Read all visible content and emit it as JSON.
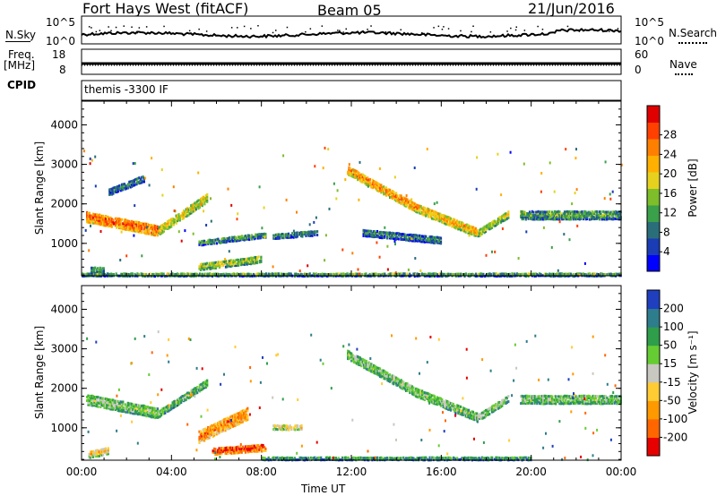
{
  "header": {
    "station": "Fort Hays West (fitACF)",
    "beam": "Beam 05",
    "date": "21/Jun/2016"
  },
  "noise_panel": {
    "left_label": "N.Sky",
    "right_label": "N.Search",
    "left_ticks": [
      "10^5",
      "10^0"
    ],
    "right_ticks": [
      "10^5",
      "10^0"
    ]
  },
  "freq_panel": {
    "left_label_1": "Freq.",
    "left_label_2": "[MHz]",
    "right_label": "Nave",
    "left_ticks": [
      "18",
      "8"
    ],
    "right_ticks": [
      "60",
      "0"
    ]
  },
  "cpid_panel": {
    "label": "CPID",
    "program": "themis -3300 IF"
  },
  "chart_data": [
    {
      "type": "heatmap",
      "name": "power",
      "ylabel": "Slant Range [km]",
      "yticks": [
        1000,
        2000,
        3000,
        4000
      ],
      "ylim": [
        180,
        4600
      ],
      "xlim": [
        0,
        24
      ],
      "colorbar": {
        "label": "Power [dB]",
        "ticks": [
          "4",
          "8",
          "12",
          "16",
          "20",
          "24",
          "28"
        ],
        "colors": [
          "#0000ff",
          "#1a3cb4",
          "#2a6e7a",
          "#3aa04a",
          "#7dbe2a",
          "#e6d21e",
          "#ffb000",
          "#ff8000",
          "#ff4000",
          "#e00000"
        ]
      },
      "echo_regions": [
        {
          "t0": 0.2,
          "t1": 3.4,
          "r_start": 1700,
          "r_end": 1350,
          "thick": 260,
          "level": 0.85
        },
        {
          "t0": 3.4,
          "t1": 5.6,
          "r_start": 1350,
          "r_end": 2200,
          "thick": 220,
          "level": 0.6
        },
        {
          "t0": 1.2,
          "t1": 2.8,
          "r_start": 2350,
          "r_end": 2700,
          "thick": 200,
          "level": 0.3
        },
        {
          "t0": 5.2,
          "t1": 8.2,
          "r_start": 1050,
          "r_end": 1250,
          "thick": 140,
          "level": 0.35
        },
        {
          "t0": 8.5,
          "t1": 10.5,
          "r_start": 1200,
          "r_end": 1300,
          "thick": 120,
          "level": 0.3
        },
        {
          "t0": 5.2,
          "t1": 8.0,
          "r_start": 450,
          "r_end": 650,
          "thick": 200,
          "level": 0.5
        },
        {
          "t0": 0.4,
          "t1": 1.0,
          "r_start": 350,
          "r_end": 350,
          "thick": 180,
          "level": 0.3
        },
        {
          "t0": 11.8,
          "t1": 15.0,
          "r_start": 2900,
          "r_end": 1900,
          "thick": 240,
          "level": 0.75
        },
        {
          "t0": 15.0,
          "t1": 17.6,
          "r_start": 1900,
          "r_end": 1300,
          "thick": 220,
          "level": 0.7
        },
        {
          "t0": 17.6,
          "t1": 19.0,
          "r_start": 1300,
          "r_end": 1800,
          "thick": 200,
          "level": 0.55
        },
        {
          "t0": 12.5,
          "t1": 16.0,
          "r_start": 1300,
          "r_end": 1100,
          "thick": 160,
          "level": 0.3
        },
        {
          "t0": 19.5,
          "t1": 24.0,
          "r_start": 1750,
          "r_end": 1750,
          "thick": 220,
          "level": 0.4
        },
        {
          "t0": 0.0,
          "t1": 24.0,
          "r_start": 240,
          "r_end": 240,
          "thick": 80,
          "level": 0.35
        }
      ]
    },
    {
      "type": "heatmap",
      "name": "velocity",
      "ylabel": "Slant Range [km]",
      "yticks": [
        1000,
        2000,
        3000,
        4000
      ],
      "ylim": [
        180,
        4600
      ],
      "xlim": [
        0,
        24
      ],
      "xticks": [
        "00:00",
        "04:00",
        "08:00",
        "12:00",
        "16:00",
        "20:00",
        "00:00"
      ],
      "xlabel": "Time UT",
      "colorbar": {
        "label": "Velocity [m s⁻¹]",
        "ticks": [
          "200",
          "100",
          "50",
          "15",
          "-15",
          "-50",
          "-100",
          "-200"
        ],
        "colors": [
          "#1f3fbf",
          "#2e7d8c",
          "#2e9e4a",
          "#66cc33",
          "#c8c8c0",
          "#ffcc33",
          "#ff9900",
          "#ff6600",
          "#e60000"
        ]
      },
      "echo_regions": [
        {
          "t0": 0.2,
          "t1": 3.4,
          "r_start": 1750,
          "r_end": 1400,
          "thick": 260,
          "level": 0.45
        },
        {
          "t0": 3.4,
          "t1": 5.6,
          "r_start": 1400,
          "r_end": 2200,
          "thick": 200,
          "level": 0.4
        },
        {
          "t0": 5.2,
          "t1": 7.4,
          "r_start": 800,
          "r_end": 1400,
          "thick": 300,
          "level": 0.85
        },
        {
          "t0": 5.8,
          "t1": 8.2,
          "r_start": 450,
          "r_end": 550,
          "thick": 200,
          "level": 0.95
        },
        {
          "t0": 8.5,
          "t1": 9.8,
          "r_start": 1050,
          "r_end": 1050,
          "thick": 140,
          "level": 0.6
        },
        {
          "t0": 0.3,
          "t1": 1.2,
          "r_start": 350,
          "r_end": 450,
          "thick": 160,
          "level": 0.65
        },
        {
          "t0": 11.8,
          "t1": 15.0,
          "r_start": 2900,
          "r_end": 1900,
          "thick": 240,
          "level": 0.45
        },
        {
          "t0": 15.0,
          "t1": 17.6,
          "r_start": 1900,
          "r_end": 1300,
          "thick": 220,
          "level": 0.45
        },
        {
          "t0": 17.6,
          "t1": 19.0,
          "r_start": 1300,
          "r_end": 1800,
          "thick": 200,
          "level": 0.45
        },
        {
          "t0": 19.5,
          "t1": 24.0,
          "r_start": 1750,
          "r_end": 1750,
          "thick": 220,
          "level": 0.45
        },
        {
          "t0": 8.0,
          "t1": 20.0,
          "r_start": 260,
          "r_end": 260,
          "thick": 90,
          "level": 0.25
        }
      ]
    }
  ]
}
